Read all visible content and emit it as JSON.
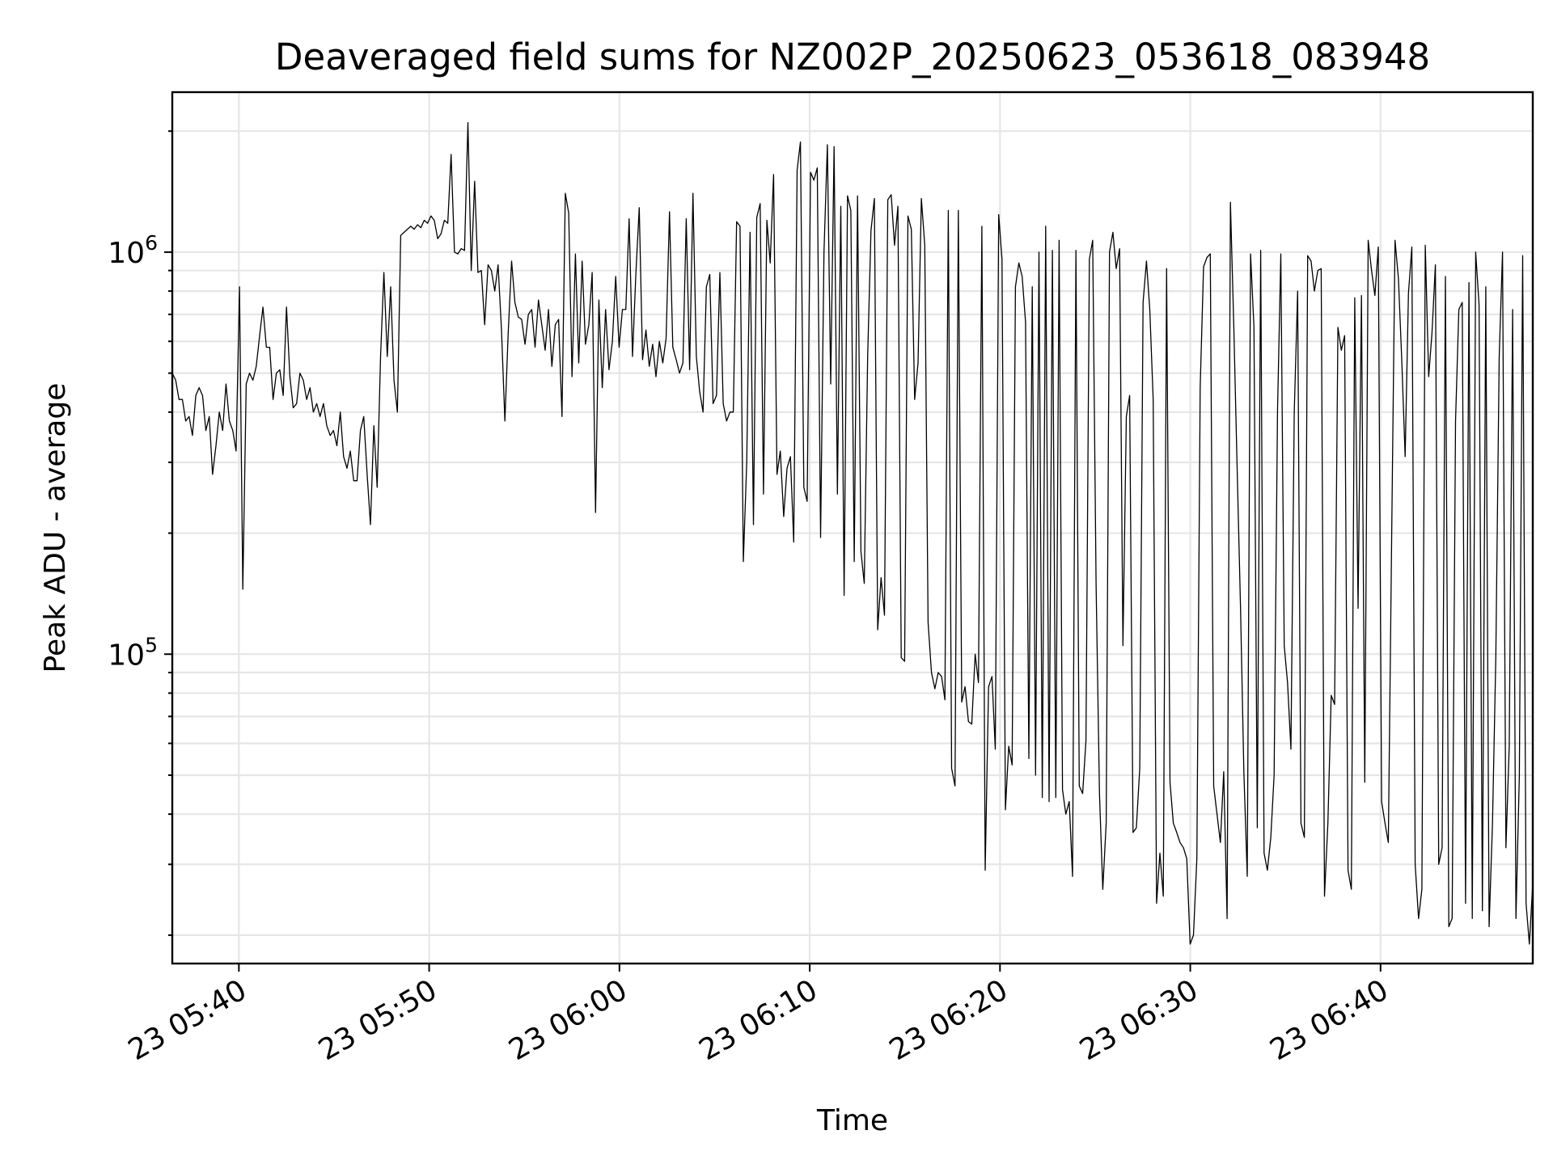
{
  "chart_data": {
    "type": "line",
    "title": "Deaveraged field sums for NZ002P_20250623_053618_083948",
    "xlabel": "Time",
    "ylabel": "Peak ADU - average",
    "yscale": "log",
    "grid": true,
    "xlim": [
      "23 05:36:30",
      "23 06:48:00"
    ],
    "ylim": [
      17000,
      2500000
    ],
    "x_ticks": [
      "23 05:40",
      "23 05:50",
      "23 06:00",
      "23 06:10",
      "23 06:20",
      "23 06:30",
      "23 06:40"
    ],
    "y_ticks": [
      {
        "base": "10",
        "exp": "5",
        "value": 100000
      },
      {
        "base": "10",
        "exp": "6",
        "value": 1000000
      }
    ],
    "line_color": "#000000",
    "series": [
      {
        "x_start": "23 05:36:30",
        "x_end": "23 06:48:00",
        "values": [
          500000,
          480000,
          430000,
          430000,
          380000,
          390000,
          350000,
          440000,
          460000,
          440000,
          360000,
          390000,
          280000,
          330000,
          400000,
          360000,
          470000,
          380000,
          360000,
          320000,
          820000,
          145000,
          470000,
          500000,
          480000,
          520000,
          620000,
          730000,
          580000,
          580000,
          430000,
          500000,
          510000,
          440000,
          730000,
          490000,
          410000,
          420000,
          500000,
          480000,
          430000,
          460000,
          400000,
          420000,
          390000,
          420000,
          370000,
          350000,
          360000,
          330000,
          400000,
          310000,
          290000,
          320000,
          270000,
          270000,
          360000,
          390000,
          280000,
          210000,
          370000,
          260000,
          550000,
          890000,
          550000,
          820000,
          480000,
          400000,
          1100000,
          1120000,
          1140000,
          1160000,
          1140000,
          1170000,
          1150000,
          1200000,
          1180000,
          1230000,
          1200000,
          1080000,
          1110000,
          1200000,
          1180000,
          1750000,
          1000000,
          990000,
          1020000,
          1010000,
          2100000,
          900000,
          1500000,
          890000,
          900000,
          660000,
          930000,
          900000,
          800000,
          930000,
          640000,
          380000,
          630000,
          950000,
          750000,
          690000,
          680000,
          590000,
          700000,
          720000,
          580000,
          760000,
          660000,
          570000,
          720000,
          520000,
          660000,
          680000,
          390000,
          1400000,
          1250000,
          490000,
          990000,
          530000,
          950000,
          590000,
          660000,
          890000,
          225000,
          760000,
          460000,
          720000,
          510000,
          600000,
          870000,
          580000,
          720000,
          720000,
          1210000,
          550000,
          880000,
          1290000,
          540000,
          640000,
          520000,
          590000,
          490000,
          600000,
          530000,
          610000,
          1260000,
          580000,
          540000,
          500000,
          530000,
          1210000,
          510000,
          1400000,
          550000,
          450000,
          400000,
          820000,
          880000,
          420000,
          440000,
          890000,
          420000,
          380000,
          400000,
          400000,
          1190000,
          1160000,
          170000,
          300000,
          1120000,
          210000,
          1220000,
          1320000,
          250000,
          1200000,
          940000,
          1560000,
          280000,
          320000,
          220000,
          290000,
          310000,
          190000,
          1600000,
          1880000,
          260000,
          240000,
          1580000,
          1510000,
          1620000,
          195000,
          1000000,
          1850000,
          470000,
          1830000,
          250000,
          1300000,
          140000,
          1380000,
          1270000,
          170000,
          1380000,
          180000,
          150000,
          550000,
          1130000,
          1360000,
          115000,
          155000,
          125000,
          1350000,
          1390000,
          1040000,
          1300000,
          98000,
          96000,
          1230000,
          1140000,
          430000,
          530000,
          1360000,
          1040000,
          120000,
          90000,
          82000,
          90000,
          88000,
          77000,
          1270000,
          52000,
          47000,
          1270000,
          76000,
          83000,
          68000,
          67000,
          100000,
          85000,
          1160000,
          29000,
          83000,
          88000,
          58000,
          1240000,
          960000,
          41000,
          59000,
          53000,
          820000,
          940000,
          870000,
          670000,
          55000,
          820000,
          50000,
          1000000,
          44000,
          1160000,
          43000,
          1010000,
          44000,
          1070000,
          46000,
          40000,
          43000,
          28000,
          1010000,
          47000,
          45000,
          61000,
          960000,
          1070000,
          150000,
          45000,
          26000,
          38000,
          1000000,
          1120000,
          910000,
          1020000,
          105000,
          390000,
          440000,
          36000,
          37000,
          52000,
          750000,
          950000,
          720000,
          430000,
          24000,
          32000,
          25000,
          910000,
          48000,
          38000,
          36000,
          34000,
          33000,
          31000,
          19000,
          20000,
          31000,
          460000,
          920000,
          970000,
          990000,
          47000,
          40000,
          34000,
          51000,
          22000,
          1330000,
          650000,
          290000,
          130000,
          51000,
          28000,
          990000,
          650000,
          37000,
          1010000,
          32000,
          29000,
          35000,
          50000,
          400000,
          990000,
          105000,
          85000,
          58000,
          400000,
          800000,
          38000,
          35000,
          980000,
          950000,
          800000,
          900000,
          910000,
          25000,
          38000,
          79000,
          75000,
          650000,
          570000,
          620000,
          29000,
          26000,
          770000,
          130000,
          780000,
          48000,
          1070000,
          900000,
          780000,
          1030000,
          43000,
          38000,
          34000,
          200000,
          1070000,
          860000,
          540000,
          310000,
          790000,
          1030000,
          30000,
          22000,
          26000,
          1040000,
          490000,
          630000,
          930000,
          30000,
          33000,
          870000,
          21000,
          22000,
          380000,
          720000,
          750000,
          24000,
          840000,
          22000,
          1000000,
          740000,
          23000,
          820000,
          21000,
          38000,
          98000,
          550000,
          1000000,
          33000,
          59000,
          720000,
          22000,
          50000,
          980000,
          24000,
          19000,
          27000
        ],
        "note": "values read approximately from a dense time series"
      }
    ]
  }
}
